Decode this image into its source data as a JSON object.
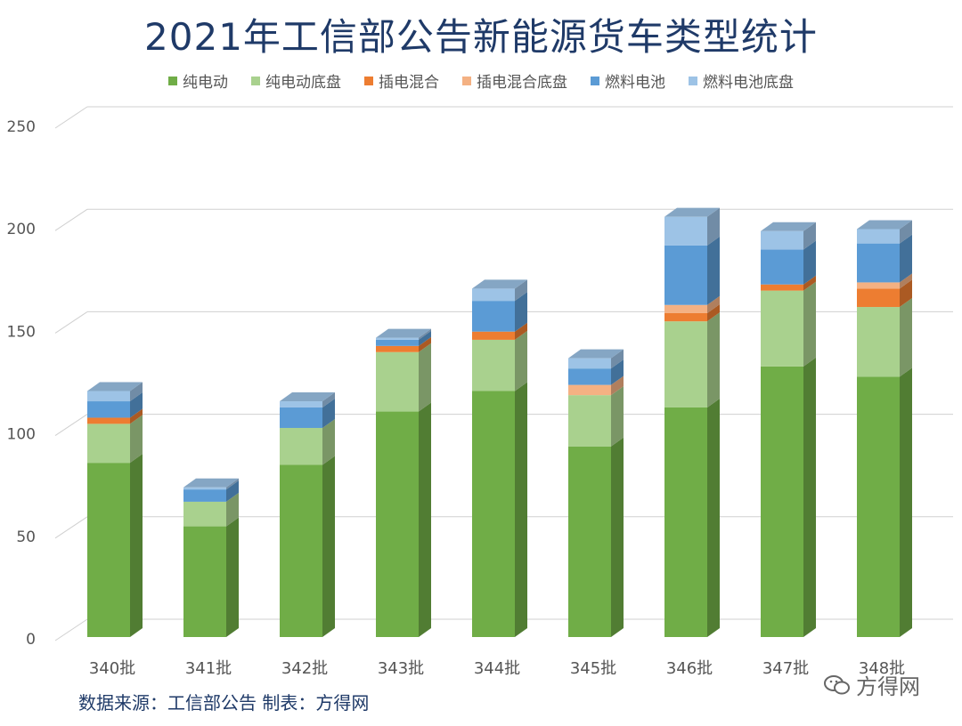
{
  "title": "2021年工信部公告新能源货车类型统计",
  "source": "数据来源：工信部公告  制表：方得网",
  "watermark": "方得网",
  "watermark_icon": "wechat-icon",
  "colors": {
    "纯电动": "#70ad47",
    "纯电动底盘": "#a9d18e",
    "插电混合": "#ed7d31",
    "插电混合底盘": "#f4b183",
    "燃料电池": "#5b9bd5",
    "燃料电池底盘": "#9dc3e6"
  },
  "chart_data": {
    "type": "bar",
    "stacked": true,
    "categories": [
      "340批",
      "341批",
      "342批",
      "343批",
      "344批",
      "345批",
      "346批",
      "347批",
      "348批"
    ],
    "series": [
      {
        "name": "纯电动",
        "values": [
          85,
          54,
          84,
          110,
          120,
          93,
          112,
          132,
          127
        ]
      },
      {
        "name": "纯电动底盘",
        "values": [
          19,
          12,
          18,
          29,
          25,
          25,
          42,
          37,
          34
        ]
      },
      {
        "name": "插电混合",
        "values": [
          3,
          0,
          0,
          3,
          4,
          0,
          4,
          3,
          9
        ]
      },
      {
        "name": "插电混合底盘",
        "values": [
          0,
          0,
          0,
          0,
          0,
          5,
          4,
          0,
          3
        ]
      },
      {
        "name": "燃料电池",
        "values": [
          8,
          6,
          10,
          3,
          15,
          8,
          29,
          17,
          19
        ]
      },
      {
        "name": "燃料电池底盘",
        "values": [
          5,
          1,
          3,
          1,
          6,
          5,
          14,
          9,
          7
        ]
      }
    ],
    "yticks": [
      0,
      50,
      100,
      150,
      200,
      250
    ],
    "ylim": [
      0,
      250
    ],
    "grid": true,
    "legend_position": "top",
    "style": "3d-column"
  }
}
